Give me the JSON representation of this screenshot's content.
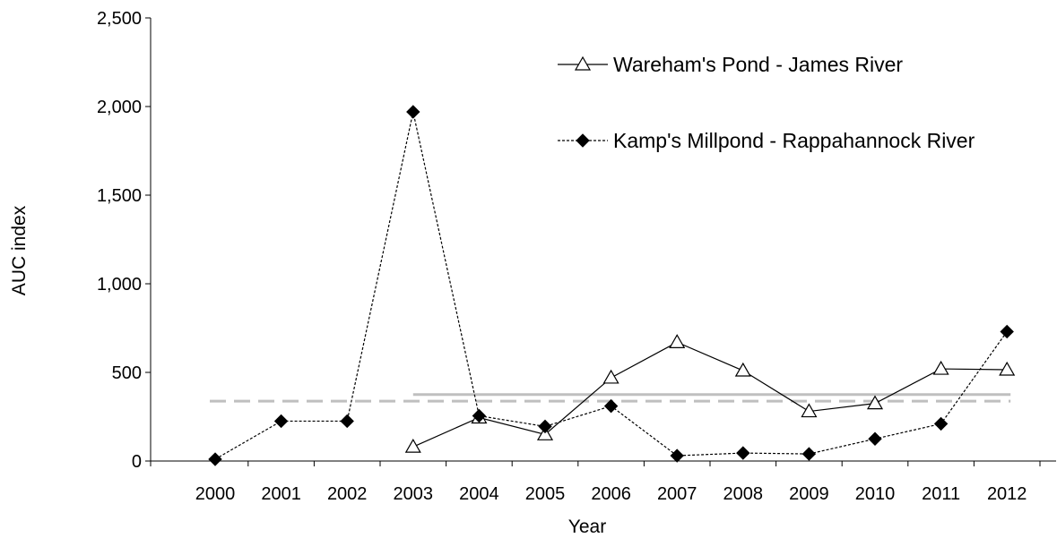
{
  "chart_data": {
    "type": "line",
    "xlabel": "Year",
    "ylabel": "AUC index",
    "ylim": [
      0,
      2500
    ],
    "yticks": [
      0,
      500,
      1000,
      1500,
      2000,
      2500
    ],
    "ytick_labels": [
      "0",
      "500",
      "1,000",
      "1,500",
      "2,000",
      "2,500"
    ],
    "categories": [
      "2000",
      "2001",
      "2002",
      "2003",
      "2004",
      "2005",
      "2006",
      "2007",
      "2008",
      "2009",
      "2010",
      "2011",
      "2012"
    ],
    "grid": false,
    "legend_position": "top-right",
    "series": [
      {
        "name": "Wareham's Pond - James River",
        "marker": "open-triangle",
        "line_style": "solid",
        "color": "#000000",
        "values": [
          null,
          null,
          null,
          80,
          245,
          150,
          470,
          670,
          510,
          280,
          325,
          520,
          515
        ]
      },
      {
        "name": "Kamp's Millpond - Rappahannock River",
        "marker": "filled-diamond",
        "line_style": "dotted",
        "color": "#000000",
        "values": [
          10,
          225,
          225,
          1970,
          255,
          195,
          310,
          30,
          45,
          40,
          125,
          210,
          730
        ]
      }
    ],
    "reference_lines": [
      {
        "series": "Wareham's Pond - James River",
        "value": 375,
        "x_from": "2003",
        "x_to": "2012",
        "style": "solid",
        "color": "#bfbfbf"
      },
      {
        "series": "Kamp's Millpond - Rappahannock River",
        "value": 338,
        "x_from": "2000",
        "x_to": "2012",
        "style": "dashed",
        "color": "#bfbfbf"
      }
    ]
  }
}
